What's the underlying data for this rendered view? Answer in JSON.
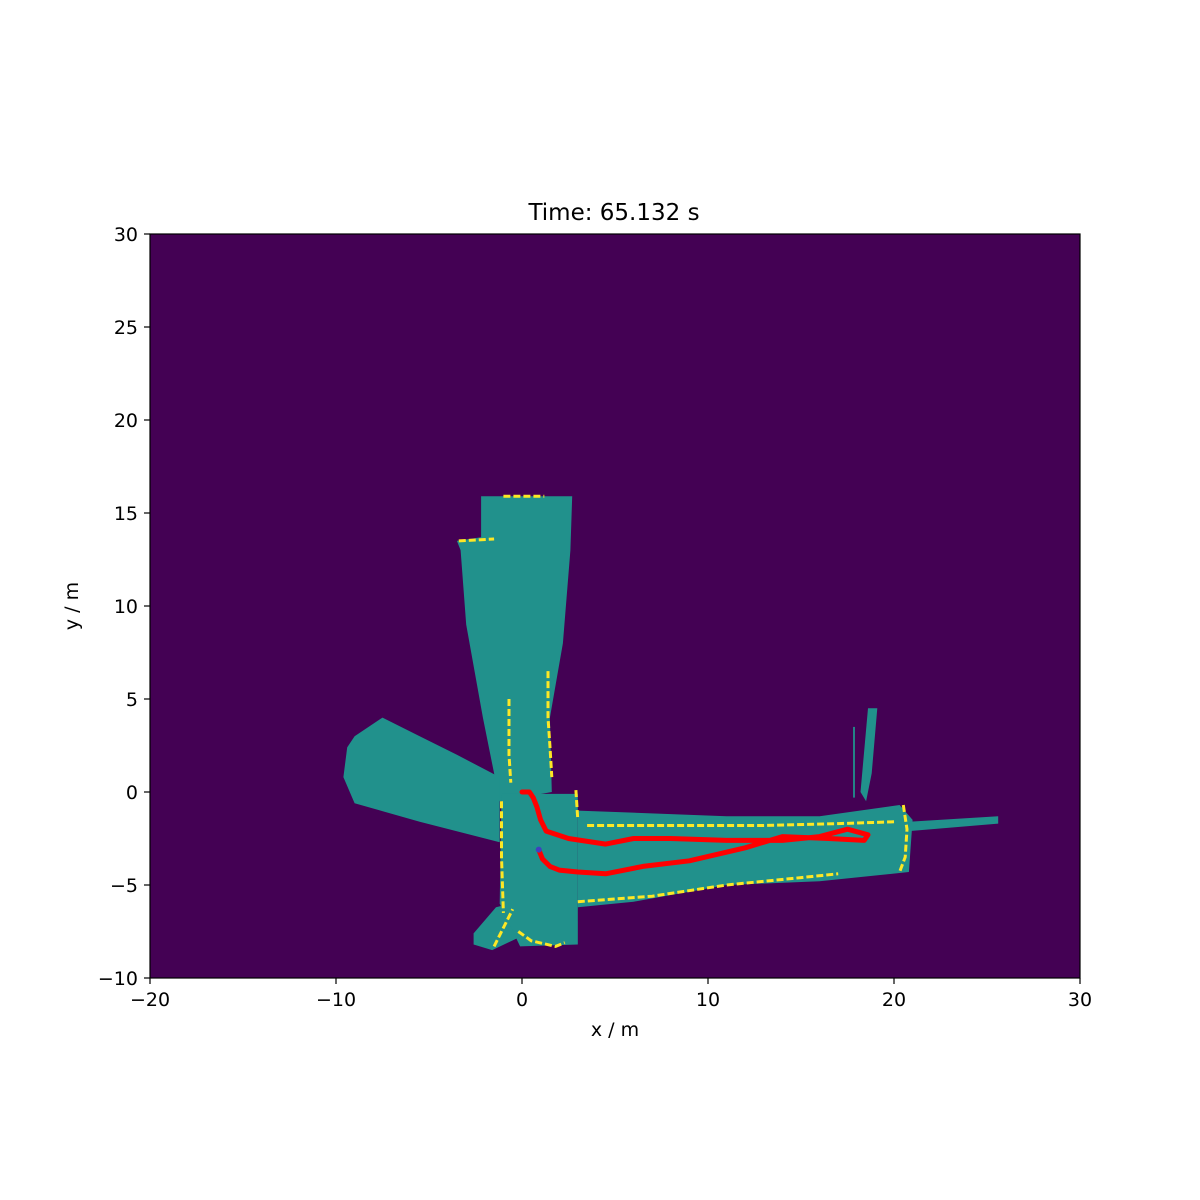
{
  "chart_data": {
    "type": "heatmap",
    "title": "Time: 65.132 s",
    "xlabel": "x / m",
    "ylabel": "y / m",
    "xlim": [
      -20,
      30
    ],
    "ylim": [
      -10,
      30
    ],
    "xticks": [
      -20,
      -10,
      0,
      10,
      20,
      30
    ],
    "yticks": [
      -10,
      -5,
      0,
      5,
      10,
      15,
      20,
      25,
      30
    ],
    "xtick_labels": [
      "−20",
      "−10",
      "0",
      "10",
      "20",
      "30"
    ],
    "ytick_labels": [
      "−10",
      "−5",
      "0",
      "5",
      "10",
      "15",
      "20",
      "25",
      "30"
    ],
    "grid": false,
    "colors": {
      "unknown": "#440154",
      "free": "#21918c",
      "occupied": "#fde725",
      "trajectory": "#ff0000",
      "start_marker": "#4040c0"
    },
    "free_regions": [
      {
        "name": "north-corridor",
        "points": [
          [
            -2.2,
            15.9
          ],
          [
            2.7,
            15.9
          ],
          [
            2.6,
            13
          ],
          [
            2.2,
            8
          ],
          [
            1.5,
            4
          ],
          [
            1.6,
            0
          ],
          [
            -1.2,
            -0.5
          ],
          [
            -2.1,
            4
          ],
          [
            -3.0,
            9
          ],
          [
            -3.3,
            13
          ],
          [
            -3.5,
            13.5
          ],
          [
            -2.2,
            13.7
          ]
        ]
      },
      {
        "name": "west-wedge",
        "points": [
          [
            -9.0,
            3.0
          ],
          [
            -7.5,
            4.0
          ],
          [
            -5.5,
            3.0
          ],
          [
            -3.5,
            2.0
          ],
          [
            -1.2,
            0.8
          ],
          [
            -1.2,
            -2.7
          ],
          [
            -5.5,
            -1.6
          ],
          [
            -9.0,
            -0.6
          ],
          [
            -9.6,
            0.8
          ],
          [
            -9.4,
            2.4
          ]
        ]
      },
      {
        "name": "south-west-spur",
        "points": [
          [
            -2.6,
            -7.6
          ],
          [
            -1.4,
            -6.2
          ],
          [
            0.2,
            -5.8
          ],
          [
            0.3,
            -7.6
          ],
          [
            -1.6,
            -8.5
          ],
          [
            -2.6,
            -8.2
          ]
        ]
      },
      {
        "name": "central-junction",
        "points": [
          [
            -1.1,
            -0.1
          ],
          [
            3.0,
            -0.1
          ],
          [
            3.0,
            -6.0
          ],
          [
            3.0,
            -8.2
          ],
          [
            -0.1,
            -8.3
          ],
          [
            -1.2,
            -6.0
          ]
        ]
      },
      {
        "name": "east-corridor",
        "points": [
          [
            3.0,
            -1.0
          ],
          [
            11,
            -1.3
          ],
          [
            16,
            -1.3
          ],
          [
            20.3,
            -0.7
          ],
          [
            21.0,
            -1.5
          ],
          [
            20.8,
            -4.3
          ],
          [
            16,
            -4.8
          ],
          [
            11,
            -5.0
          ],
          [
            6,
            -5.9
          ],
          [
            3.0,
            -6.2
          ]
        ]
      },
      {
        "name": "east-beam",
        "points": [
          [
            20.8,
            -1.6
          ],
          [
            25.6,
            -1.3
          ],
          [
            25.6,
            -1.7
          ],
          [
            20.8,
            -2.1
          ]
        ]
      },
      {
        "name": "north-east-ray",
        "points": [
          [
            18.5,
            4.5
          ],
          [
            18.6,
            4.5
          ],
          [
            18.2,
            0
          ],
          [
            18.5,
            -0.5
          ],
          [
            18.8,
            1
          ],
          [
            19.1,
            4.5
          ]
        ]
      },
      {
        "name": "north-east-ray-2",
        "points": [
          [
            17.8,
            3.5
          ],
          [
            17.9,
            3.5
          ],
          [
            17.9,
            -0.3
          ],
          [
            17.8,
            -0.3
          ]
        ]
      }
    ],
    "occupied_segments": [
      {
        "name": "north-wall-top",
        "points": [
          [
            -1.0,
            15.9
          ],
          [
            1.2,
            15.9
          ]
        ]
      },
      {
        "name": "north-wall-left-upper",
        "points": [
          [
            -3.4,
            13.5
          ],
          [
            -1.5,
            13.6
          ]
        ]
      },
      {
        "name": "north-inner-wall",
        "points": [
          [
            1.4,
            6.5
          ],
          [
            1.4,
            4.0
          ],
          [
            1.5,
            2.5
          ],
          [
            1.6,
            0.8
          ]
        ]
      },
      {
        "name": "north-inner-wall-2",
        "points": [
          [
            -0.7,
            5.0
          ],
          [
            -0.7,
            2.0
          ],
          [
            -0.6,
            0.5
          ]
        ]
      },
      {
        "name": "junction-left-wall",
        "points": [
          [
            -1.1,
            -0.5
          ],
          [
            -1.1,
            -3.5
          ],
          [
            -1.0,
            -6.5
          ]
        ]
      },
      {
        "name": "junction-right-wall",
        "points": [
          [
            2.9,
            0.1
          ],
          [
            3.0,
            -1.5
          ]
        ]
      },
      {
        "name": "east-top-wall",
        "points": [
          [
            3.5,
            -1.8
          ],
          [
            8,
            -1.8
          ],
          [
            13,
            -1.8
          ],
          [
            17,
            -1.7
          ],
          [
            20,
            -1.6
          ]
        ]
      },
      {
        "name": "east-bottom-wall",
        "points": [
          [
            3.0,
            -5.9
          ],
          [
            7,
            -5.6
          ],
          [
            11,
            -5.0
          ],
          [
            15,
            -4.6
          ],
          [
            17,
            -4.4
          ]
        ]
      },
      {
        "name": "east-end-wall",
        "points": [
          [
            20.5,
            -0.7
          ],
          [
            20.7,
            -2.0
          ],
          [
            20.6,
            -3.5
          ],
          [
            20.3,
            -4.3
          ]
        ]
      },
      {
        "name": "south-wall",
        "points": [
          [
            -0.2,
            -7.5
          ],
          [
            0.5,
            -8.0
          ],
          [
            1.8,
            -8.3
          ],
          [
            2.3,
            -8.1
          ]
        ]
      },
      {
        "name": "south-left-wall",
        "points": [
          [
            -1.5,
            -8.3
          ],
          [
            -0.5,
            -6.3
          ]
        ]
      }
    ],
    "trajectory": {
      "x": [
        0.0,
        0.4,
        0.6,
        0.8,
        1.0,
        1.3,
        2.5,
        4.5,
        6.0,
        8.0,
        11.0,
        14.0,
        16.0,
        17.5,
        18.6,
        18.4,
        16.5,
        14.0,
        12.0,
        9.0,
        6.5,
        4.5,
        3.0,
        2.0,
        1.5,
        1.1,
        0.9
      ],
      "y": [
        0.0,
        0.0,
        -0.3,
        -0.8,
        -1.5,
        -2.1,
        -2.5,
        -2.8,
        -2.5,
        -2.5,
        -2.6,
        -2.6,
        -2.4,
        -2.0,
        -2.3,
        -2.6,
        -2.5,
        -2.4,
        -3.0,
        -3.7,
        -4.0,
        -4.4,
        -4.3,
        -4.2,
        -4.0,
        -3.6,
        -3.1
      ]
    }
  }
}
